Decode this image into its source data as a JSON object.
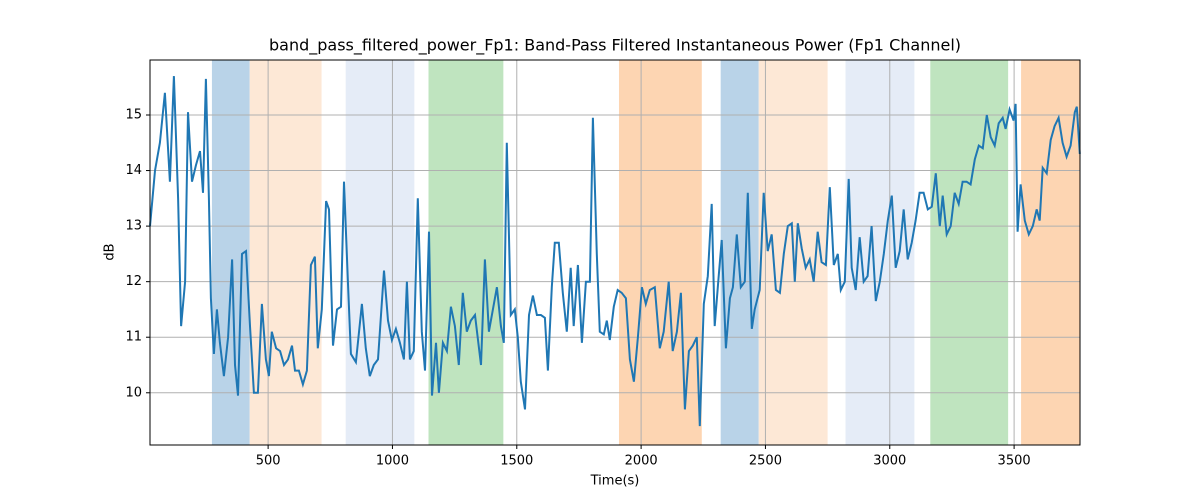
{
  "chart_data": {
    "type": "line",
    "title": "band_pass_filtered_power_Fp1: Band-Pass Filtered Instantaneous Power (Fp1 Channel)",
    "x_label": "Time(s)",
    "y_label": "dB",
    "xlim": [
      25,
      3765
    ],
    "ylim": [
      9.06,
      15.99
    ],
    "xticks": [
      500,
      1000,
      1500,
      2000,
      2500,
      3000,
      3500
    ],
    "yticks": [
      10,
      11,
      12,
      13,
      14,
      15
    ],
    "grid": true,
    "spans": [
      {
        "start": 274,
        "end": 426,
        "color": "#b9d3e8"
      },
      {
        "start": 426,
        "end": 715,
        "color": "#fde8d6"
      },
      {
        "start": 812,
        "end": 1088,
        "color": "#e5ecf7"
      },
      {
        "start": 1145,
        "end": 1446,
        "color": "#bfe4bf"
      },
      {
        "start": 1911,
        "end": 2244,
        "color": "#fdd5b2"
      },
      {
        "start": 2320,
        "end": 2473,
        "color": "#b9d3e8"
      },
      {
        "start": 2473,
        "end": 2750,
        "color": "#fde8d6"
      },
      {
        "start": 2822,
        "end": 3099,
        "color": "#e5ecf7"
      },
      {
        "start": 3163,
        "end": 3476,
        "color": "#bfe4bf"
      },
      {
        "start": 3528,
        "end": 3765,
        "color": "#fdd5b2"
      }
    ],
    "color": "#1f77b4",
    "x": [
      25,
      45,
      65,
      85,
      105,
      121,
      138,
      150,
      166,
      178,
      194,
      210,
      226,
      238,
      250,
      262,
      270,
      282,
      294,
      306,
      322,
      339,
      355,
      367,
      379,
      395,
      411,
      427,
      443,
      459,
      475,
      491,
      503,
      515,
      532,
      548,
      564,
      580,
      596,
      608,
      624,
      640,
      656,
      672,
      688,
      700,
      716,
      733,
      745,
      761,
      777,
      793,
      805,
      821,
      833,
      853,
      877,
      893,
      909,
      925,
      942,
      966,
      982,
      998,
      1014,
      1030,
      1046,
      1058,
      1070,
      1086,
      1102,
      1118,
      1131,
      1147,
      1159,
      1175,
      1187,
      1203,
      1219,
      1235,
      1251,
      1267,
      1283,
      1299,
      1315,
      1332,
      1356,
      1372,
      1388,
      1404,
      1420,
      1436,
      1448,
      1460,
      1476,
      1492,
      1504,
      1516,
      1533,
      1549,
      1565,
      1581,
      1597,
      1613,
      1625,
      1641,
      1653,
      1669,
      1685,
      1701,
      1717,
      1729,
      1746,
      1762,
      1778,
      1794,
      1806,
      1822,
      1834,
      1850,
      1862,
      1874,
      1890,
      1906,
      1922,
      1939,
      1955,
      1971,
      1987,
      2003,
      2019,
      2035,
      2055,
      2075,
      2091,
      2111,
      2127,
      2144,
      2160,
      2176,
      2192,
      2208,
      2224,
      2236,
      2252,
      2268,
      2284,
      2296,
      2312,
      2324,
      2341,
      2357,
      2369,
      2385,
      2401,
      2417,
      2429,
      2445,
      2457,
      2477,
      2493,
      2509,
      2525,
      2542,
      2558,
      2574,
      2590,
      2606,
      2618,
      2630,
      2646,
      2662,
      2678,
      2694,
      2710,
      2726,
      2743,
      2759,
      2775,
      2791,
      2803,
      2819,
      2835,
      2847,
      2863,
      2879,
      2895,
      2911,
      2927,
      2944,
      2960,
      2976,
      2992,
      3008,
      3024,
      3040,
      3056,
      3072,
      3088,
      3104,
      3120,
      3136,
      3153,
      3169,
      3185,
      3201,
      3213,
      3229,
      3245,
      3261,
      3277,
      3293,
      3309,
      3325,
      3342,
      3358,
      3374,
      3390,
      3406,
      3422,
      3438,
      3454,
      3466,
      3482,
      3498,
      3506,
      3514,
      3526,
      3543,
      3559,
      3575,
      3591,
      3603,
      3615,
      3631,
      3647,
      3663,
      3679,
      3695,
      3711,
      3727,
      3744,
      3752,
      3764
    ],
    "values": [
      13.0,
      14.0,
      14.5,
      15.4,
      13.8,
      15.7,
      13.5,
      11.2,
      12.0,
      15.05,
      13.8,
      14.1,
      14.35,
      13.6,
      15.65,
      13.5,
      11.7,
      10.7,
      11.5,
      10.9,
      10.3,
      11.0,
      12.4,
      10.5,
      9.95,
      12.5,
      12.55,
      11.2,
      10.0,
      10.0,
      11.6,
      10.6,
      10.3,
      11.1,
      10.8,
      10.75,
      10.5,
      10.6,
      10.85,
      10.4,
      10.4,
      10.15,
      10.4,
      12.3,
      12.45,
      10.8,
      11.5,
      13.45,
      13.3,
      10.85,
      11.5,
      11.55,
      13.8,
      12.0,
      10.7,
      10.55,
      11.6,
      10.8,
      10.3,
      10.5,
      10.6,
      12.2,
      11.3,
      10.95,
      11.15,
      10.9,
      10.6,
      12.0,
      10.6,
      10.75,
      13.5,
      11.1,
      10.4,
      12.9,
      9.95,
      10.9,
      10.0,
      10.9,
      10.75,
      11.55,
      11.2,
      10.5,
      11.8,
      11.1,
      11.3,
      11.4,
      10.5,
      12.4,
      11.1,
      11.5,
      11.9,
      11.2,
      10.9,
      14.5,
      11.4,
      11.5,
      11.0,
      10.2,
      9.7,
      11.4,
      11.75,
      11.4,
      11.4,
      11.35,
      10.4,
      11.9,
      12.7,
      12.7,
      11.8,
      11.1,
      12.25,
      11.2,
      12.3,
      10.9,
      12.0,
      12.0,
      14.95,
      12.5,
      11.1,
      11.05,
      11.3,
      10.95,
      11.55,
      11.85,
      11.8,
      11.7,
      10.6,
      10.2,
      11.0,
      11.9,
      11.6,
      11.85,
      11.9,
      10.8,
      11.1,
      12.0,
      10.75,
      11.1,
      11.8,
      9.7,
      10.75,
      10.85,
      11.0,
      9.4,
      11.6,
      12.1,
      13.4,
      11.2,
      12.1,
      12.75,
      10.8,
      11.7,
      11.9,
      12.85,
      11.9,
      12.0,
      13.6,
      11.15,
      11.5,
      11.85,
      13.6,
      12.55,
      12.85,
      11.85,
      11.8,
      12.5,
      13.0,
      13.05,
      12.0,
      13.05,
      12.6,
      12.25,
      12.4,
      12.0,
      12.9,
      12.35,
      12.3,
      13.7,
      12.3,
      12.5,
      11.85,
      12.0,
      13.85,
      12.25,
      11.85,
      12.8,
      12.0,
      12.1,
      13.0,
      11.65,
      12.0,
      12.5,
      13.1,
      13.55,
      12.25,
      12.55,
      13.3,
      12.4,
      12.7,
      13.1,
      13.6,
      13.6,
      13.3,
      13.35,
      13.95,
      13.0,
      13.55,
      12.85,
      13.0,
      13.6,
      13.4,
      13.8,
      13.8,
      13.75,
      14.2,
      14.45,
      14.4,
      15.0,
      14.6,
      14.45,
      14.85,
      14.95,
      14.75,
      15.1,
      14.9,
      15.2,
      12.9,
      13.75,
      13.1,
      12.85,
      13.0,
      13.3,
      13.1,
      14.05,
      13.95,
      14.55,
      14.8,
      14.95,
      14.5,
      14.25,
      14.45,
      15.05,
      15.15,
      14.3
    ]
  }
}
